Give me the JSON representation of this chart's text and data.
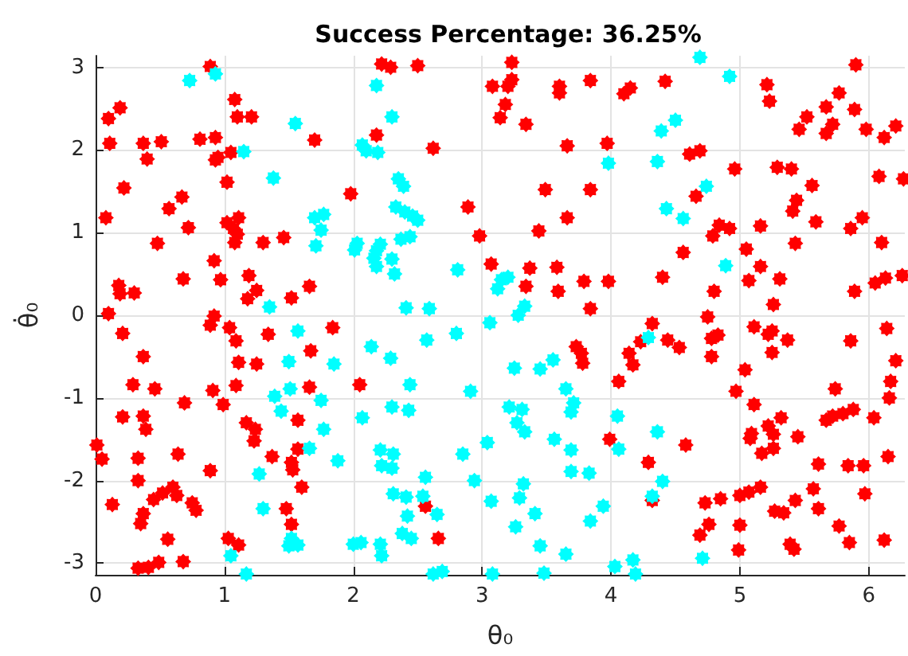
{
  "chart_data": {
    "type": "scatter",
    "title": "Success Percentage: 36.25%",
    "xlabel": "θ₀",
    "ylabel": "θ̇₀",
    "xlim": [
      0,
      6.28
    ],
    "ylim": [
      -3.14,
      3.14
    ],
    "xticks": [
      0,
      1,
      2,
      3,
      4,
      5,
      6
    ],
    "yticks": [
      -3,
      -2,
      -1,
      0,
      1,
      2,
      3
    ],
    "grid": true,
    "marker": "star",
    "series": [
      {
        "color": "#ff0000",
        "x": [
          0.89,
          1.08,
          1.1,
          1.21,
          0.19,
          0.1,
          0.11,
          0.37,
          0.51,
          0.4,
          0.81,
          0.93,
          1.05,
          0.95,
          0.93,
          1.02,
          0.22,
          0.67,
          0.57,
          0.08,
          0.72,
          1.02,
          1.11,
          1.07,
          1.1,
          1.08,
          0.48,
          1.3,
          1.46,
          1.7,
          1.98,
          0.92,
          0.68,
          0.97,
          1.19,
          0.18,
          0.19,
          0.3,
          1.25,
          1.18,
          1.52,
          1.66,
          0.1,
          0.92,
          2.22,
          2.29,
          2.5,
          3.23,
          3.08,
          3.2,
          3.23,
          3.6,
          3.6,
          3.84,
          4.1,
          4.15,
          3.18,
          3.14,
          3.34,
          2.18,
          2.62,
          3.66,
          3.97,
          3.49,
          3.84,
          2.89,
          3.66,
          3.44,
          2.98,
          3.07,
          3.37,
          3.58,
          3.34,
          3.59,
          3.79,
          3.98,
          3.84,
          4.42,
          5.21,
          5.23,
          5.9,
          5.77,
          5.67,
          5.89,
          5.52,
          5.46,
          5.72,
          5.67,
          5.98,
          6.12,
          6.21,
          4.61,
          4.69,
          4.96,
          5.29,
          5.4,
          5.56,
          5.44,
          5.41,
          6.08,
          6.27,
          4.66,
          5.59,
          5.95,
          5.86,
          4.84,
          4.92,
          4.79,
          5.16,
          5.43,
          6.1,
          5.05,
          4.56,
          5.16,
          4.4,
          5.07,
          5.31,
          4.8,
          5.89,
          6.05,
          6.13,
          6.26,
          5.26,
          4.75,
          0.21,
          0.37,
          0.29,
          0.46,
          0.69,
          0.89,
          1.04,
          1.09,
          1.34,
          1.11,
          1.25,
          1.09,
          0.91,
          0.99,
          1.84,
          1.67,
          1.66,
          2.05,
          0.21,
          0.37,
          0.39,
          0.01,
          0.05,
          0.33,
          0.64,
          0.89,
          1.17,
          1.24,
          1.23,
          1.37,
          1.57,
          1.57,
          1.52,
          1.53,
          1.6,
          0.33,
          0.13,
          0.6,
          0.52,
          0.45,
          0.63,
          0.75,
          0.78,
          0.37,
          0.35,
          1.48,
          1.52,
          0.56,
          1.03,
          1.11,
          0.33,
          0.41,
          0.49,
          0.68,
          2.56,
          2.66,
          3.73,
          3.77,
          3.78,
          4.14,
          4.17,
          4.06,
          3.99,
          4.32,
          4.23,
          4.44,
          4.53,
          4.78,
          4.83,
          4.78,
          5.11,
          5.22,
          5.25,
          5.25,
          5.37,
          5.04,
          4.97,
          5.11,
          5.32,
          5.22,
          5.26,
          5.09,
          5.08,
          5.45,
          5.17,
          5.26,
          4.58,
          4.29,
          5.86,
          6.14,
          6.21,
          6.17,
          6.16,
          5.74,
          5.67,
          5.72,
          5.8,
          5.88,
          6.04,
          6.15,
          5.61,
          5.84,
          5.96,
          4.32,
          4.73,
          4.85,
          5.0,
          5.07,
          5.16,
          5.43,
          5.57,
          5.61,
          5.27,
          5.34,
          5.97,
          4.76,
          4.69,
          5.0,
          4.99,
          5.39,
          5.42,
          5.77,
          5.85,
          6.12
        ],
        "values": [
          3.01,
          2.61,
          2.4,
          2.4,
          2.51,
          2.38,
          2.08,
          2.08,
          2.1,
          1.89,
          2.13,
          2.15,
          1.97,
          1.91,
          1.88,
          1.61,
          1.54,
          1.43,
          1.29,
          1.18,
          1.06,
          1.12,
          1.18,
          1.05,
          0.98,
          0.88,
          0.87,
          0.88,
          0.94,
          2.12,
          1.47,
          0.66,
          0.44,
          0.43,
          0.48,
          0.36,
          0.26,
          0.27,
          0.3,
          0.2,
          0.21,
          0.35,
          0.02,
          -0.01,
          3.04,
          3.0,
          3.02,
          3.06,
          2.77,
          2.77,
          2.85,
          2.77,
          2.69,
          2.84,
          2.68,
          2.75,
          2.55,
          2.39,
          2.31,
          2.18,
          2.02,
          2.05,
          2.08,
          1.52,
          1.52,
          1.31,
          1.18,
          1.02,
          0.96,
          0.62,
          0.57,
          0.58,
          0.35,
          0.29,
          0.41,
          0.41,
          0.08,
          2.83,
          2.79,
          2.59,
          3.03,
          2.69,
          2.52,
          2.49,
          2.4,
          2.25,
          2.31,
          2.2,
          2.25,
          2.15,
          2.29,
          1.95,
          1.99,
          1.77,
          1.79,
          1.77,
          1.57,
          1.39,
          1.26,
          1.68,
          1.65,
          1.44,
          1.13,
          1.18,
          1.05,
          1.09,
          1.05,
          0.96,
          1.08,
          0.87,
          0.88,
          0.8,
          0.76,
          0.59,
          0.46,
          0.42,
          0.44,
          0.29,
          0.29,
          0.39,
          0.45,
          0.48,
          0.13,
          -0.02,
          -0.22,
          -0.5,
          -0.84,
          -0.89,
          -1.06,
          -0.12,
          -0.15,
          -0.31,
          -0.23,
          -0.57,
          -0.59,
          -0.85,
          -0.91,
          -1.08,
          -0.15,
          -0.43,
          -0.87,
          -0.84,
          -1.23,
          -1.22,
          -1.38,
          -1.57,
          -1.74,
          -1.73,
          -1.68,
          -1.88,
          -1.3,
          -1.38,
          -1.52,
          -1.71,
          -1.27,
          -1.62,
          -1.78,
          -1.87,
          -2.08,
          -2.0,
          -2.29,
          -2.08,
          -2.15,
          -2.23,
          -2.18,
          -2.27,
          -2.36,
          -2.4,
          -2.52,
          -2.34,
          -2.53,
          -2.71,
          -2.7,
          -2.78,
          -3.06,
          -3.05,
          -2.99,
          -2.98,
          -2.31,
          -2.7,
          -0.38,
          -0.46,
          -0.58,
          -0.46,
          -0.6,
          -0.8,
          -1.5,
          -0.1,
          -0.32,
          -0.3,
          -0.39,
          -0.28,
          -0.24,
          -0.5,
          -0.14,
          -0.23,
          -0.19,
          -0.45,
          -0.3,
          -0.66,
          -0.92,
          -1.08,
          -1.24,
          -1.34,
          -1.44,
          -1.43,
          -1.49,
          -1.47,
          -1.67,
          -1.61,
          -1.57,
          -1.78,
          -0.31,
          -0.16,
          -0.55,
          -0.8,
          -1.0,
          -0.89,
          -1.27,
          -1.22,
          -1.19,
          -1.14,
          -1.24,
          -1.71,
          -1.8,
          -1.82,
          -1.82,
          -2.24,
          -2.27,
          -2.22,
          -2.18,
          -2.14,
          -2.08,
          -2.24,
          -2.1,
          -2.34,
          -2.37,
          -2.39,
          -2.16,
          -2.53,
          -2.66,
          -2.54,
          -2.84,
          -2.77,
          -2.83,
          -2.55,
          -2.75,
          -2.72
        ]
      },
      {
        "color": "#00ffff",
        "x": [
          0.73,
          0.93,
          1.15,
          1.38,
          1.55,
          2.07,
          1.77,
          1.7,
          1.75,
          1.71,
          2.03,
          2.01,
          1.35,
          2.18,
          2.3,
          2.1,
          2.19,
          2.35,
          2.39,
          2.33,
          2.4,
          2.46,
          2.5,
          2.44,
          2.37,
          2.21,
          2.18,
          2.16,
          2.18,
          2.3,
          2.32,
          2.81,
          3.98,
          3.2,
          3.15,
          3.12,
          2.41,
          2.59,
          3.33,
          3.28,
          4.69,
          4.92,
          4.5,
          4.39,
          4.36,
          4.74,
          4.43,
          4.56,
          4.89,
          1.57,
          1.5,
          1.85,
          1.51,
          1.39,
          1.44,
          1.75,
          1.77,
          1.66,
          1.88,
          2.07,
          1.27,
          1.3,
          1.52,
          1.57,
          1.5,
          2.0,
          2.06,
          1.05,
          1.17,
          3.06,
          2.14,
          2.29,
          2.57,
          2.8,
          2.44,
          2.3,
          2.43,
          2.91,
          3.25,
          3.45,
          3.55,
          3.65,
          3.71,
          3.69,
          3.21,
          3.31,
          3.27,
          3.33,
          3.04,
          3.56,
          3.69,
          4.05,
          4.06,
          2.21,
          2.31,
          2.22,
          2.3,
          2.85,
          2.56,
          2.94,
          3.69,
          3.83,
          3.32,
          3.29,
          3.07,
          2.31,
          2.41,
          2.54,
          2.65,
          2.42,
          2.38,
          2.45,
          3.41,
          3.26,
          3.94,
          3.84,
          2.21,
          2.22,
          3.45,
          3.65,
          2.62,
          2.69,
          3.08,
          3.48,
          4.03,
          4.17,
          4.29,
          4.36,
          4.4,
          4.32,
          4.19,
          4.71
        ],
        "values": [
          2.84,
          2.92,
          1.98,
          1.66,
          2.32,
          2.06,
          1.22,
          1.18,
          1.03,
          0.84,
          0.87,
          0.79,
          0.1,
          2.78,
          2.4,
          1.99,
          1.97,
          1.65,
          1.56,
          1.31,
          1.25,
          1.2,
          1.15,
          0.95,
          0.92,
          0.86,
          0.78,
          0.69,
          0.59,
          0.68,
          0.5,
          0.55,
          1.84,
          0.46,
          0.43,
          0.32,
          0.09,
          0.08,
          0.11,
          0.0,
          3.12,
          2.89,
          2.36,
          2.23,
          1.86,
          1.56,
          1.29,
          1.17,
          0.6,
          -0.19,
          -0.56,
          -0.59,
          -0.89,
          -0.98,
          -1.16,
          -1.03,
          -1.38,
          -1.61,
          -1.76,
          -1.24,
          -1.92,
          -2.34,
          -2.7,
          -2.78,
          -2.79,
          -2.77,
          -2.75,
          -2.91,
          -3.13,
          -0.09,
          -0.38,
          -0.52,
          -0.3,
          -0.22,
          -0.84,
          -1.11,
          -1.15,
          -0.92,
          -0.64,
          -0.65,
          -0.54,
          -0.89,
          -1.06,
          -1.17,
          -1.11,
          -1.14,
          -1.3,
          -1.41,
          -1.54,
          -1.5,
          -1.63,
          -1.22,
          -1.62,
          -1.63,
          -1.68,
          -1.82,
          -1.85,
          -1.68,
          -1.96,
          -2.0,
          -1.89,
          -1.91,
          -2.04,
          -2.21,
          -2.25,
          -2.16,
          -2.2,
          -2.19,
          -2.41,
          -2.43,
          -2.64,
          -2.7,
          -2.4,
          -2.56,
          -2.31,
          -2.49,
          -2.77,
          -2.91,
          -2.79,
          -2.89,
          -3.13,
          -3.1,
          -3.13,
          -3.12,
          -3.04,
          -2.96,
          -0.27,
          -1.41,
          -2.01,
          -2.19,
          -3.13,
          -2.94
        ]
      }
    ]
  }
}
